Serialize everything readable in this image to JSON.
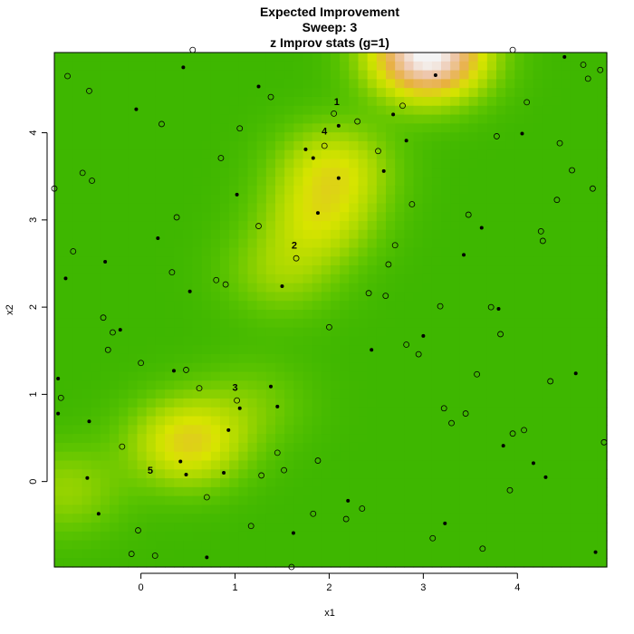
{
  "chart_data": {
    "type": "heatmap",
    "title": [
      "Expected Improvement",
      "Sweep: 3",
      "z Improv stats (g=1)"
    ],
    "xlabel": "x1",
    "ylabel": "x2",
    "xlim": [
      -0.92,
      4.95
    ],
    "ylim": [
      -0.98,
      4.92
    ],
    "xticks": [
      0,
      1,
      2,
      3,
      4
    ],
    "yticks": [
      0,
      1,
      2,
      3,
      4
    ],
    "grid": false,
    "colors": {
      "low": "#2fb000",
      "mid_low": "#5cc400",
      "mid": "#a8d800",
      "mid_high": "#d8e400",
      "high": "#e8b040",
      "peak": "#f2f2f2"
    },
    "surface_peaks": [
      {
        "x": 3.05,
        "y": 4.9,
        "height": 1.0
      },
      {
        "x": 0.5,
        "y": 0.45,
        "height": 0.45
      },
      {
        "x": 2.05,
        "y": 3.6,
        "height": 0.35
      },
      {
        "x": 1.9,
        "y": 3.0,
        "height": 0.3
      },
      {
        "x": 1.5,
        "y": 2.4,
        "height": 0.2
      },
      {
        "x": -0.8,
        "y": -0.1,
        "height": 0.2
      },
      {
        "x": 1.2,
        "y": 0.9,
        "height": 0.12
      }
    ],
    "annotations": [
      {
        "label": "1",
        "x": 2.08,
        "y": 4.32
      },
      {
        "label": "4",
        "x": 1.95,
        "y": 3.98
      },
      {
        "label": "2",
        "x": 1.63,
        "y": 2.67
      },
      {
        "label": "3",
        "x": 1.0,
        "y": 1.04
      },
      {
        "label": "5",
        "x": 0.1,
        "y": 0.09
      }
    ],
    "open_points": [
      [
        -0.78,
        4.65
      ],
      [
        -0.55,
        4.48
      ],
      [
        0.22,
        4.1
      ],
      [
        1.05,
        4.05
      ],
      [
        1.38,
        4.41
      ],
      [
        2.05,
        4.22
      ],
      [
        2.3,
        4.13
      ],
      [
        2.78,
        4.31
      ],
      [
        1.95,
        3.85
      ],
      [
        2.52,
        3.79
      ],
      [
        3.78,
        3.96
      ],
      [
        4.1,
        4.35
      ],
      [
        4.45,
        3.88
      ],
      [
        4.58,
        3.57
      ],
      [
        4.75,
        4.62
      ],
      [
        4.7,
        4.78
      ],
      [
        4.88,
        4.72
      ],
      [
        3.95,
        4.95
      ],
      [
        0.55,
        4.95
      ],
      [
        -0.62,
        3.54
      ],
      [
        -0.52,
        3.45
      ],
      [
        -0.92,
        3.36
      ],
      [
        0.85,
        3.71
      ],
      [
        1.25,
        2.93
      ],
      [
        0.38,
        3.03
      ],
      [
        2.88,
        3.18
      ],
      [
        3.48,
        3.06
      ],
      [
        4.42,
        3.23
      ],
      [
        4.8,
        3.36
      ],
      [
        -0.72,
        2.64
      ],
      [
        0.33,
        2.4
      ],
      [
        0.8,
        2.31
      ],
      [
        0.9,
        2.26
      ],
      [
        1.65,
        2.56
      ],
      [
        2.7,
        2.71
      ],
      [
        2.63,
        2.49
      ],
      [
        2.42,
        2.16
      ],
      [
        2.6,
        2.13
      ],
      [
        3.18,
        2.01
      ],
      [
        3.72,
        2.0
      ],
      [
        4.25,
        2.87
      ],
      [
        4.27,
        2.76
      ],
      [
        -0.4,
        1.88
      ],
      [
        -0.3,
        1.71
      ],
      [
        -0.35,
        1.51
      ],
      [
        2.0,
        1.77
      ],
      [
        2.82,
        1.57
      ],
      [
        2.95,
        1.46
      ],
      [
        3.82,
        1.69
      ],
      [
        0.0,
        1.36
      ],
      [
        0.48,
        1.28
      ],
      [
        0.62,
        1.07
      ],
      [
        1.02,
        0.93
      ],
      [
        -0.85,
        0.96
      ],
      [
        3.22,
        0.84
      ],
      [
        3.3,
        0.67
      ],
      [
        3.45,
        0.78
      ],
      [
        3.57,
        1.23
      ],
      [
        4.35,
        1.15
      ],
      [
        4.07,
        0.59
      ],
      [
        3.95,
        0.55
      ],
      [
        -0.2,
        0.4
      ],
      [
        1.45,
        0.33
      ],
      [
        1.88,
        0.24
      ],
      [
        1.52,
        0.13
      ],
      [
        1.28,
        0.07
      ],
      [
        0.7,
        -0.18
      ],
      [
        3.92,
        -0.1
      ],
      [
        4.92,
        0.45
      ],
      [
        2.35,
        -0.31
      ],
      [
        2.18,
        -0.43
      ],
      [
        1.83,
        -0.37
      ],
      [
        1.17,
        -0.51
      ],
      [
        -0.03,
        -0.56
      ],
      [
        -0.1,
        -0.83
      ],
      [
        0.15,
        -0.85
      ],
      [
        3.1,
        -0.65
      ],
      [
        3.63,
        -0.77
      ],
      [
        1.6,
        -0.98
      ]
    ],
    "filled_points": [
      [
        0.45,
        4.75
      ],
      [
        -0.05,
        4.27
      ],
      [
        1.25,
        4.53
      ],
      [
        2.1,
        4.08
      ],
      [
        2.68,
        4.21
      ],
      [
        2.82,
        3.91
      ],
      [
        3.13,
        4.66
      ],
      [
        4.05,
        3.99
      ],
      [
        4.5,
        4.87
      ],
      [
        1.75,
        3.81
      ],
      [
        1.83,
        3.71
      ],
      [
        2.1,
        3.48
      ],
      [
        2.58,
        3.56
      ],
      [
        1.02,
        3.29
      ],
      [
        1.88,
        3.08
      ],
      [
        0.18,
        2.79
      ],
      [
        -0.38,
        2.52
      ],
      [
        3.62,
        2.91
      ],
      [
        3.43,
        2.6
      ],
      [
        -0.8,
        2.33
      ],
      [
        0.52,
        2.18
      ],
      [
        1.5,
        2.24
      ],
      [
        3.8,
        1.98
      ],
      [
        -0.22,
        1.74
      ],
      [
        3.0,
        1.67
      ],
      [
        2.45,
        1.51
      ],
      [
        0.35,
        1.27
      ],
      [
        -0.88,
        1.18
      ],
      [
        1.38,
        1.09
      ],
      [
        1.45,
        0.86
      ],
      [
        1.05,
        0.84
      ],
      [
        4.62,
        1.24
      ],
      [
        -0.88,
        0.78
      ],
      [
        -0.55,
        0.69
      ],
      [
        0.93,
        0.59
      ],
      [
        0.42,
        0.23
      ],
      [
        0.48,
        0.08
      ],
      [
        0.88,
        0.1
      ],
      [
        -0.57,
        0.04
      ],
      [
        3.85,
        0.41
      ],
      [
        4.17,
        0.21
      ],
      [
        4.3,
        0.05
      ],
      [
        2.2,
        -0.22
      ],
      [
        -0.45,
        -0.37
      ],
      [
        3.23,
        -0.48
      ],
      [
        1.62,
        -0.59
      ],
      [
        0.7,
        -0.87
      ],
      [
        4.83,
        -0.81
      ]
    ]
  }
}
